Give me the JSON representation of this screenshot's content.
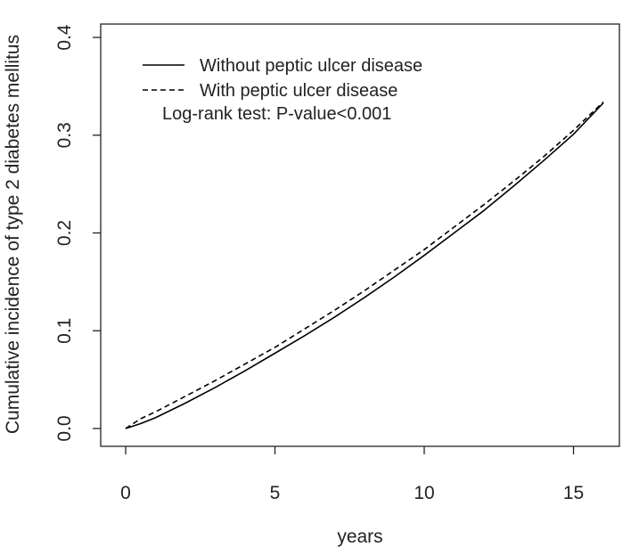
{
  "chart_data": {
    "type": "line",
    "xlabel": "years",
    "ylabel": "Cumulative incidence of type 2 diabetes mellitus",
    "xlim": [
      0,
      16
    ],
    "ylim": [
      0.0,
      0.4
    ],
    "xticks": [
      0,
      5,
      10,
      15
    ],
    "yticks": [
      0.0,
      0.1,
      0.2,
      0.3,
      0.4
    ],
    "x_tick_labels": [
      "0",
      "5",
      "10",
      "15"
    ],
    "y_tick_labels": [
      "0.0",
      "0.1",
      "0.2",
      "0.3",
      "0.4"
    ],
    "grid": false,
    "legend_position": "top-left",
    "series": [
      {
        "name": "Without peptic ulcer disease",
        "line_style": "solid",
        "color": "#000000",
        "x": [
          0,
          0.5,
          1,
          2,
          3,
          4,
          5,
          6,
          7,
          8,
          9,
          10,
          11,
          12,
          13,
          14,
          15,
          16
        ],
        "y": [
          0.0,
          0.005,
          0.011,
          0.026,
          0.042,
          0.059,
          0.077,
          0.095,
          0.114,
          0.134,
          0.155,
          0.177,
          0.2,
          0.223,
          0.248,
          0.274,
          0.301,
          0.333
        ]
      },
      {
        "name": "With peptic ulcer disease",
        "line_style": "dashed",
        "color": "#000000",
        "x": [
          0,
          0.5,
          1,
          2,
          3,
          4,
          5,
          6,
          7,
          8,
          9,
          10,
          11,
          12,
          13,
          14,
          15,
          16
        ],
        "y": [
          0.0,
          0.01,
          0.017,
          0.033,
          0.049,
          0.066,
          0.083,
          0.102,
          0.121,
          0.141,
          0.162,
          0.183,
          0.206,
          0.229,
          0.253,
          0.278,
          0.305,
          0.334
        ]
      }
    ],
    "annotation": "Log-rank test: P-value<0.001"
  }
}
